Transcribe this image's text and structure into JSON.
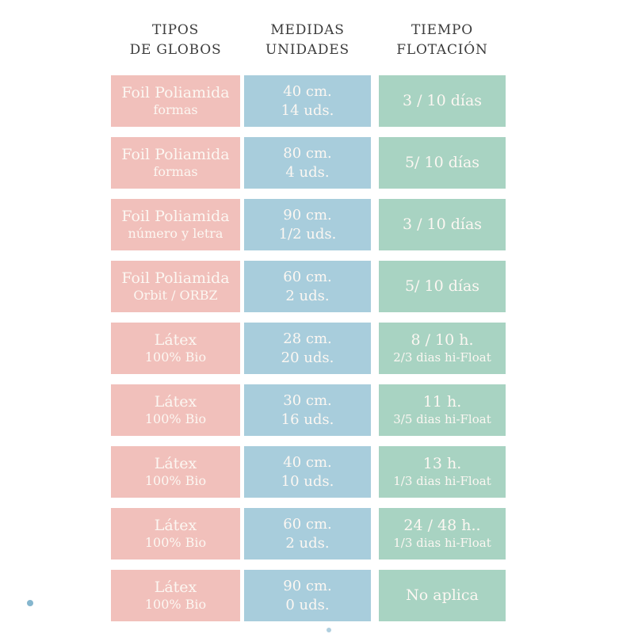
{
  "header": {
    "col1": {
      "line1": "TIPOS",
      "line2": "DE GLOBOS"
    },
    "col2": {
      "line1": "MEDIDAS",
      "line2": "UNIDADES"
    },
    "col3": {
      "line1": "TIEMPO",
      "line2": "FLOTACIÓN"
    }
  },
  "rows": [
    {
      "tipo1": "Foil Poliamida",
      "tipo2": "formas",
      "medida1": "40 cm.",
      "medida2": "14 uds.",
      "tiempo1": "3 / 10 días",
      "tiempo2": ""
    },
    {
      "tipo1": "Foil Poliamida",
      "tipo2": "formas",
      "medida1": "80 cm.",
      "medida2": "4 uds.",
      "tiempo1": "5/ 10 días",
      "tiempo2": ""
    },
    {
      "tipo1": "Foil Poliamida",
      "tipo2": "número y letra",
      "medida1": "90 cm.",
      "medida2": "1/2 uds.",
      "tiempo1": "3 / 10 días",
      "tiempo2": ""
    },
    {
      "tipo1": "Foil Poliamida",
      "tipo2": "Orbit / ORBZ",
      "medida1": "60 cm.",
      "medida2": "2 uds.",
      "tiempo1": "5/ 10 días",
      "tiempo2": ""
    },
    {
      "tipo1": "Látex",
      "tipo2": "100% Bio",
      "medida1": "28 cm.",
      "medida2": "20 uds.",
      "tiempo1": "8 / 10 h.",
      "tiempo2": "2/3 dias hi-Float"
    },
    {
      "tipo1": "Látex",
      "tipo2": "100% Bio",
      "medida1": "30 cm.",
      "medida2": "16 uds.",
      "tiempo1": "11 h.",
      "tiempo2": "3/5 dias hi-Float"
    },
    {
      "tipo1": "Látex",
      "tipo2": "100% Bio",
      "medida1": "40 cm.",
      "medida2": "10 uds.",
      "tiempo1": "13 h.",
      "tiempo2": "1/3 dias hi-Float"
    },
    {
      "tipo1": "Látex",
      "tipo2": "100% Bio",
      "medida1": "60 cm.",
      "medida2": "2 uds.",
      "tiempo1": "24 / 48 h..",
      "tiempo2": "1/3 dias hi-Float"
    },
    {
      "tipo1": "Látex",
      "tipo2": "100% Bio",
      "medida1": "90 cm.",
      "medida2": "0 uds.",
      "tiempo1": "No aplica",
      "tiempo2": ""
    }
  ],
  "colors": {
    "pink": "#f1c0bb",
    "blue": "#a8cddc",
    "green": "#a8d3c2",
    "box_text": "#fcf7f2",
    "header_text": "#3c3c3c",
    "dot": "#85b6ce"
  },
  "chart_data": {
    "type": "table",
    "title": "",
    "columns": [
      "TIPOS DE GLOBOS",
      "MEDIDAS UNIDADES",
      "TIEMPO FLOTACIÓN"
    ],
    "rows": [
      [
        "Foil Poliamida formas",
        "40 cm. / 14 uds.",
        "3 / 10 días"
      ],
      [
        "Foil Poliamida formas",
        "80 cm. / 4 uds.",
        "5/ 10 días"
      ],
      [
        "Foil Poliamida número y letra",
        "90 cm. / 1/2 uds.",
        "3 / 10 días"
      ],
      [
        "Foil Poliamida Orbit / ORBZ",
        "60 cm. / 2 uds.",
        "5/ 10 días"
      ],
      [
        "Látex 100% Bio",
        "28 cm. / 20 uds.",
        "8 / 10 h. — 2/3 dias hi-Float"
      ],
      [
        "Látex 100% Bio",
        "30 cm. / 16 uds.",
        "11 h. — 3/5 dias hi-Float"
      ],
      [
        "Látex 100% Bio",
        "40 cm. / 10 uds.",
        "13 h. — 1/3 dias hi-Float"
      ],
      [
        "Látex 100% Bio",
        "60 cm. / 2 uds.",
        "24 / 48 h.. — 1/3 dias hi-Float"
      ],
      [
        "Látex 100% Bio",
        "90 cm. / 0 uds.",
        "No aplica"
      ]
    ]
  }
}
